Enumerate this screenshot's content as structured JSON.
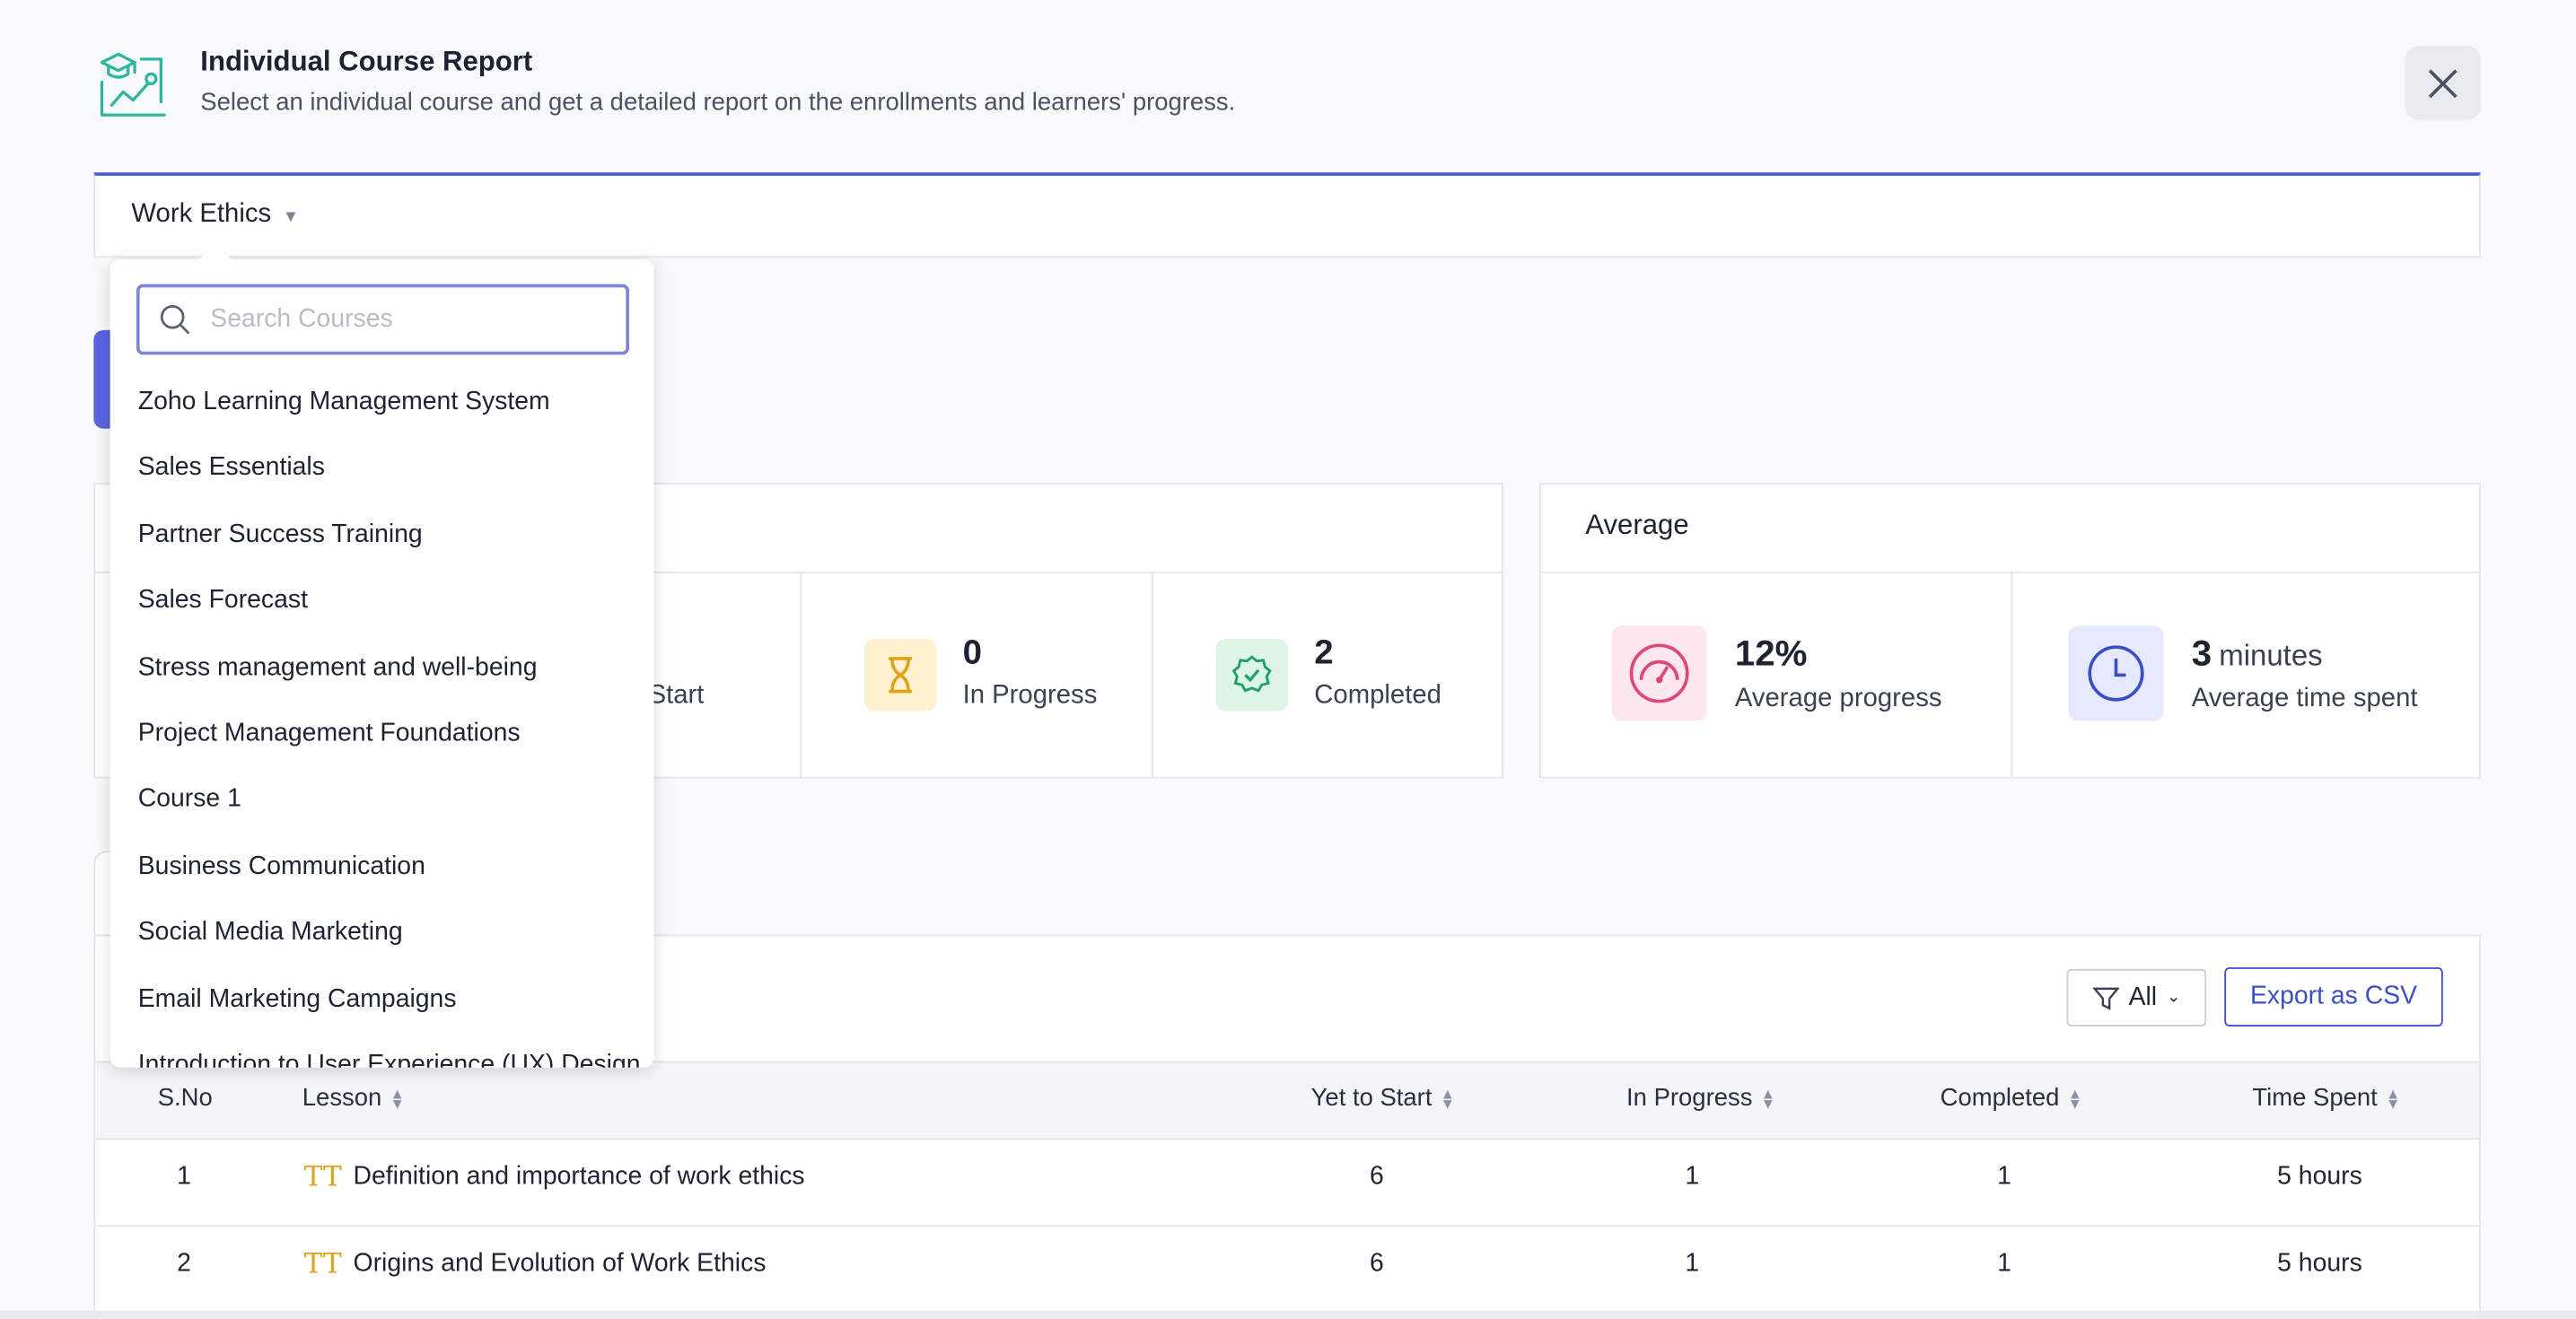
{
  "header": {
    "title": "Individual Course Report",
    "subtitle": "Select an individual course and get a detailed report on the enrollments and learners' progress."
  },
  "course_selector": {
    "selected": "Work Ethics"
  },
  "dropdown": {
    "search_placeholder": "Search Courses",
    "items": [
      "Zoho Learning Management System",
      "Sales Essentials",
      "Partner Success Training",
      "Sales Forecast",
      "Stress management and well-being",
      "Project Management Foundations",
      "Course 1",
      "Business Communication",
      "Social Media Marketing",
      "Email Marketing Campaigns",
      "Introduction to User Experience (UX) Design"
    ]
  },
  "status": {
    "yet_to_start_label": "Yet to Start",
    "in_progress": {
      "value": "0",
      "label": "In Progress"
    },
    "completed": {
      "value": "2",
      "label": "Completed"
    }
  },
  "average": {
    "title": "Average",
    "progress": {
      "value": "12%",
      "label": "Average progress"
    },
    "time": {
      "value": "3",
      "unit": "minutes",
      "label": "Average time spent"
    }
  },
  "toolbar": {
    "filter": "All",
    "export": "Export as CSV"
  },
  "table": {
    "headers": [
      "S.No",
      "Lesson",
      "Yet to Start",
      "In Progress",
      "Completed",
      "Time Spent"
    ],
    "rows": [
      [
        "1",
        "Definition and importance of work ethics",
        "6",
        "1",
        "1",
        "5 hours"
      ],
      [
        "2",
        "Origins and Evolution of Work Ethics",
        "6",
        "1",
        "1",
        "5 hours"
      ]
    ]
  }
}
